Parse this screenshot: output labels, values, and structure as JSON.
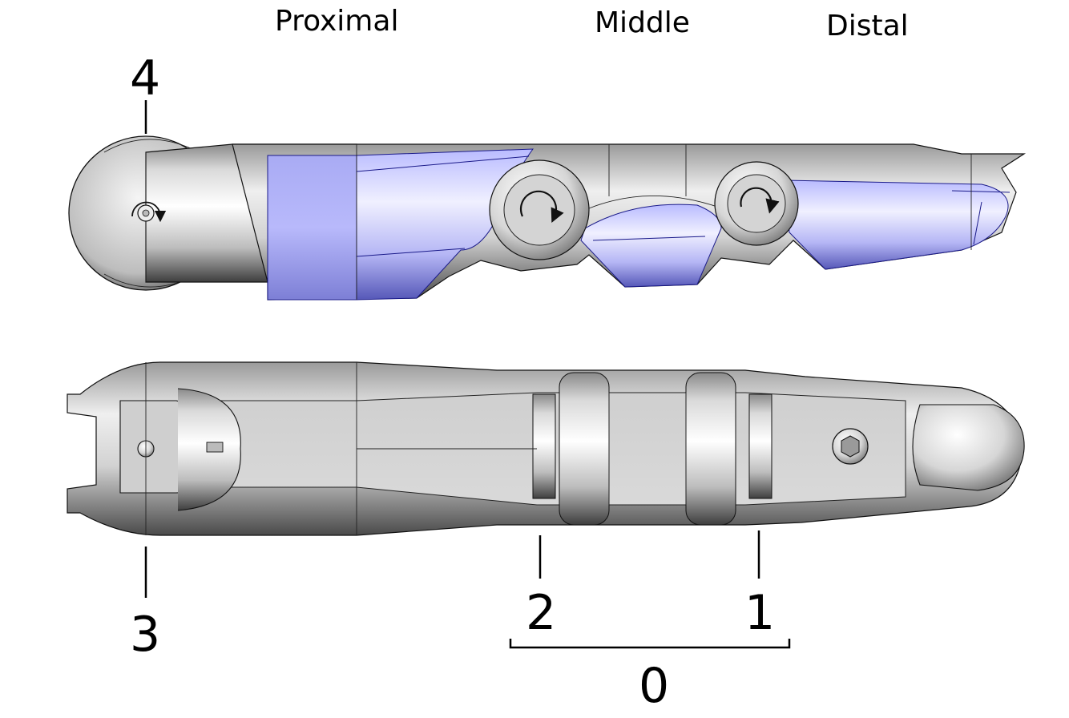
{
  "labels": {
    "segments": {
      "proximal": "Proximal",
      "middle": "Middle",
      "distal": "Distal"
    },
    "callouts": {
      "top_left": "4",
      "bottom_left": "3",
      "joint_2": "2",
      "joint_1": "1",
      "bracket": "0"
    }
  },
  "colors": {
    "metal_light": "#f4f4f4",
    "metal_mid": "#c9c9c9",
    "metal_dark": "#6b6b6b",
    "blue_light": "#d7d8ff",
    "blue_mid": "#a9abf2",
    "blue_dark": "#4a4cb0",
    "outline": "#111111"
  },
  "icons": [
    "rotation-arrow-icon",
    "rotation-arrow-icon",
    "rotation-arrow-icon",
    "hex-screw-icon",
    "pin-icon"
  ]
}
